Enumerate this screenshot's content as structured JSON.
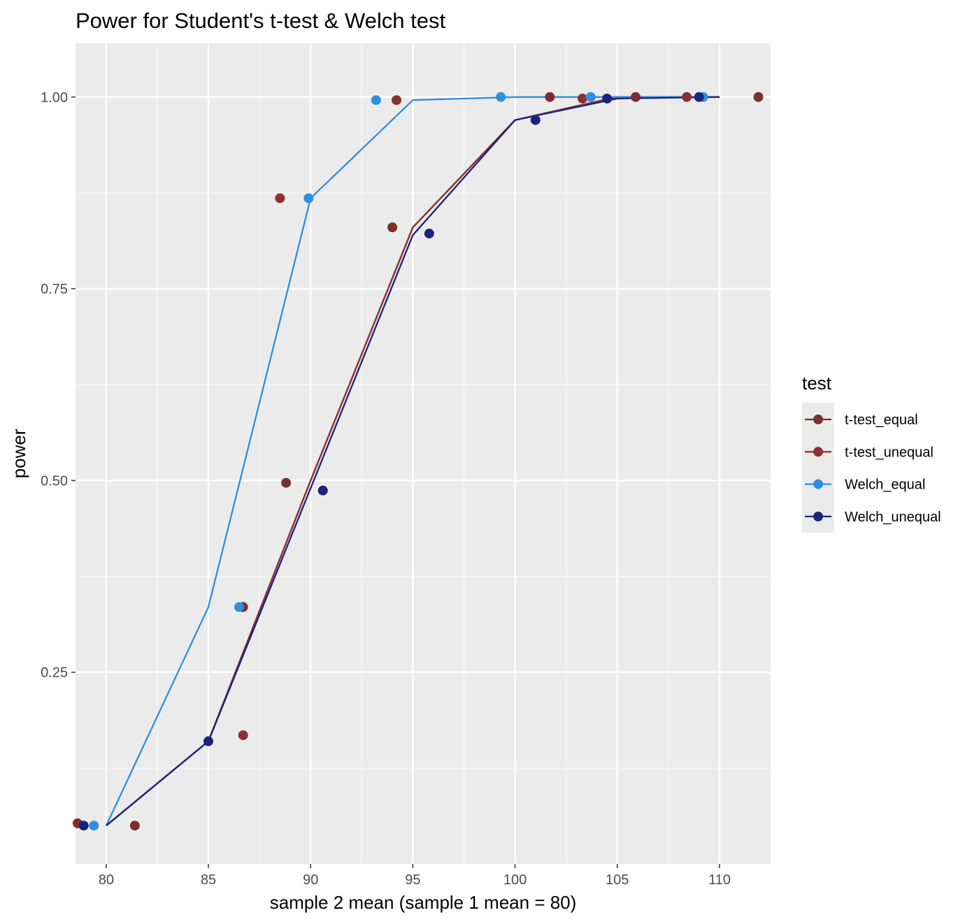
{
  "chart_data": {
    "type": "line",
    "title": "Power for Student's t-test & Welch test",
    "xlabel": "sample 2 mean (sample 1 mean = 80)",
    "ylabel": "power",
    "xlim": [
      78.5,
      112.5
    ],
    "ylim": [
      0.0,
      1.07
    ],
    "x_ticks": [
      80,
      85,
      90,
      95,
      100,
      105,
      110
    ],
    "x_tick_labels": [
      "80",
      "85",
      "90",
      "95",
      "100",
      "105",
      "110"
    ],
    "y_ticks": [
      0.25,
      0.5,
      0.75,
      1.0
    ],
    "y_tick_labels": [
      "0.25",
      "0.50",
      "0.75",
      "1.00"
    ],
    "grid": true,
    "legend_title": "test",
    "legend_position": "right",
    "line_x": [
      80,
      85,
      90,
      95,
      100,
      105,
      110
    ],
    "series": [
      {
        "name": "t-test_equal",
        "color": "#7b2f2f",
        "line_y": [
          0.05,
          0.16,
          0.5,
          0.83,
          0.97,
          1.0,
          1.0
        ],
        "points": [
          [
            78.6,
            0.053
          ],
          [
            81.4,
            0.05
          ],
          [
            86.7,
            0.335
          ],
          [
            88.8,
            0.497
          ],
          [
            94.0,
            0.83
          ],
          [
            101.7,
            1.0
          ],
          [
            105.9,
            1.0
          ],
          [
            111.9,
            1.0
          ]
        ]
      },
      {
        "name": "t-test_unequal",
        "color": "#8a3232",
        "line_y": [
          0.05,
          0.16,
          0.5,
          0.83,
          0.97,
          1.0,
          1.0
        ],
        "points": [
          [
            86.7,
            0.168
          ],
          [
            88.5,
            0.868
          ],
          [
            94.2,
            0.996
          ],
          [
            103.3,
            0.998
          ],
          [
            108.4,
            1.0
          ]
        ]
      },
      {
        "name": "Welch_equal",
        "color": "#2f8fdf",
        "line_y": [
          0.05,
          0.335,
          0.868,
          0.996,
          1.0,
          1.0,
          1.0
        ],
        "points": [
          [
            79.4,
            0.05
          ],
          [
            86.5,
            0.335
          ],
          [
            89.9,
            0.868
          ],
          [
            93.2,
            0.996
          ],
          [
            99.3,
            1.0
          ],
          [
            103.7,
            1.0
          ],
          [
            109.2,
            1.0
          ]
        ]
      },
      {
        "name": "Welch_unequal",
        "color": "#1a237e",
        "line_y": [
          0.05,
          0.16,
          0.49,
          0.82,
          0.97,
          0.998,
          1.0
        ],
        "points": [
          [
            78.9,
            0.05
          ],
          [
            85.0,
            0.16
          ],
          [
            90.6,
            0.487
          ],
          [
            95.8,
            0.822
          ],
          [
            101.0,
            0.97
          ],
          [
            104.5,
            0.998
          ],
          [
            109.0,
            1.0
          ]
        ]
      }
    ]
  }
}
